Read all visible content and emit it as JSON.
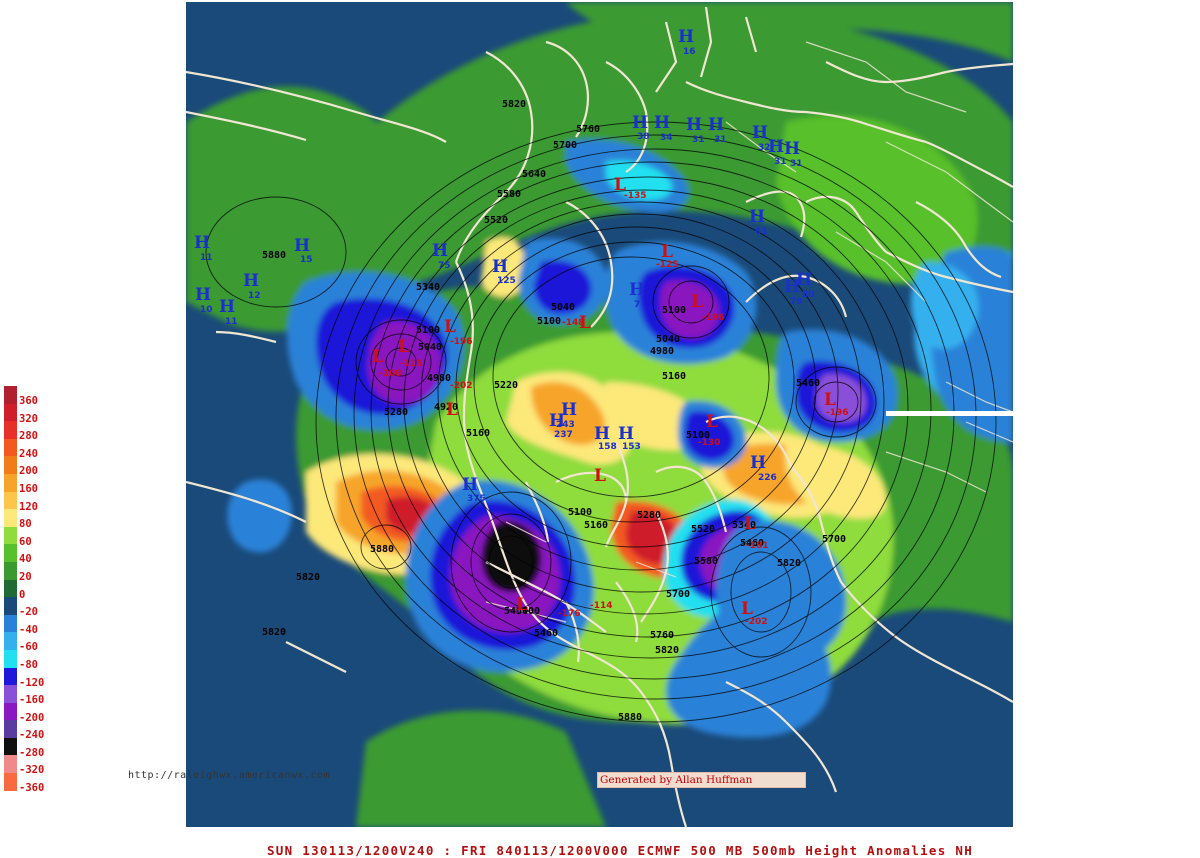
{
  "caption": "SUN 130113/1200V240 : FRI 840113/1200V000  ECMWF  500 MB 500mb Height Anomalies NH",
  "credit": "Generated by Allan Huffman",
  "url": "http://raleighwx.americanwx.com",
  "colors": {
    "background_ocean": "#1a4a7a",
    "coastline": "#f0e6d2",
    "contour": "#000000",
    "high_marker": "#1a2fd0",
    "low_marker": "#d01010"
  },
  "legend": [
    {
      "label": "360",
      "color": "#b0202e"
    },
    {
      "label": "320",
      "color": "#cf1f2a"
    },
    {
      "label": "280",
      "color": "#e8302a"
    },
    {
      "label": "240",
      "color": "#f35a20"
    },
    {
      "label": "200",
      "color": "#f07c1a"
    },
    {
      "label": "160",
      "color": "#f7a52a"
    },
    {
      "label": "120",
      "color": "#fbc64a"
    },
    {
      "label": "80",
      "color": "#fde87a"
    },
    {
      "label": "60",
      "color": "#8fdc3c"
    },
    {
      "label": "40",
      "color": "#58c02a"
    },
    {
      "label": "20",
      "color": "#3a9a30"
    },
    {
      "label": "0",
      "color": "#1f6a35"
    },
    {
      "label": "-20",
      "color": "#1a4a7a"
    },
    {
      "label": "-40",
      "color": "#2a82d8"
    },
    {
      "label": "-60",
      "color": "#34b0ef"
    },
    {
      "label": "-80",
      "color": "#22e0f0"
    },
    {
      "label": "-120",
      "color": "#1f18d8"
    },
    {
      "label": "-160",
      "color": "#8a50d8"
    },
    {
      "label": "-200",
      "color": "#8a18c0"
    },
    {
      "label": "-240",
      "color": "#5a3ca0"
    },
    {
      "label": "-280",
      "color": "#101010"
    },
    {
      "label": "-320",
      "color": "#f08a8a"
    },
    {
      "label": "-360",
      "color": "#f86a40"
    }
  ],
  "contours": [
    "5820",
    "5760",
    "5700",
    "5640",
    "5580",
    "5520",
    "5340",
    "5280",
    "5220",
    "5160",
    "5100",
    "5040",
    "4980",
    "4920",
    "5880",
    "5460",
    "5400"
  ],
  "highs": [
    {
      "letter": "H",
      "value": "16"
    },
    {
      "letter": "H",
      "value": "38"
    },
    {
      "letter": "H",
      "value": "34"
    },
    {
      "letter": "H",
      "value": "31"
    },
    {
      "letter": "H",
      "value": "31"
    },
    {
      "letter": "H",
      "value": "32"
    },
    {
      "letter": "H",
      "value": "31"
    },
    {
      "letter": "H",
      "value": "31"
    },
    {
      "letter": "H",
      "value": "61"
    },
    {
      "letter": "H",
      "value": "80"
    },
    {
      "letter": "H",
      "value": "79"
    },
    {
      "letter": "H",
      "value": "11"
    },
    {
      "letter": "H",
      "value": "15"
    },
    {
      "letter": "H",
      "value": "12"
    },
    {
      "letter": "H",
      "value": "10"
    },
    {
      "letter": "H",
      "value": "11"
    },
    {
      "letter": "H",
      "value": "75"
    },
    {
      "letter": "H",
      "value": "125"
    },
    {
      "letter": "H",
      "value": "7"
    },
    {
      "letter": "H",
      "value": "243"
    },
    {
      "letter": "H",
      "value": "237"
    },
    {
      "letter": "H",
      "value": "158"
    },
    {
      "letter": "H",
      "value": "153"
    },
    {
      "letter": "H",
      "value": "375"
    },
    {
      "letter": "H",
      "value": "226"
    }
  ],
  "lows": [
    {
      "letter": "L",
      "value": "-135"
    },
    {
      "letter": "L",
      "value": "-125"
    },
    {
      "letter": "L",
      "value": "-115"
    },
    {
      "letter": "L",
      "value": "-108"
    },
    {
      "letter": "L",
      "value": "-196"
    },
    {
      "letter": "L",
      "value": "-202"
    },
    {
      "letter": "L",
      "value": "-148"
    },
    {
      "letter": "L",
      "value": "-196"
    },
    {
      "letter": "L",
      "value": "-114"
    },
    {
      "letter": "L",
      "value": "-176"
    },
    {
      "letter": "L",
      "value": "-181"
    },
    {
      "letter": "L",
      "value": "-196"
    },
    {
      "letter": "L",
      "value": "-202"
    },
    {
      "letter": "L",
      "value": "-130"
    }
  ]
}
